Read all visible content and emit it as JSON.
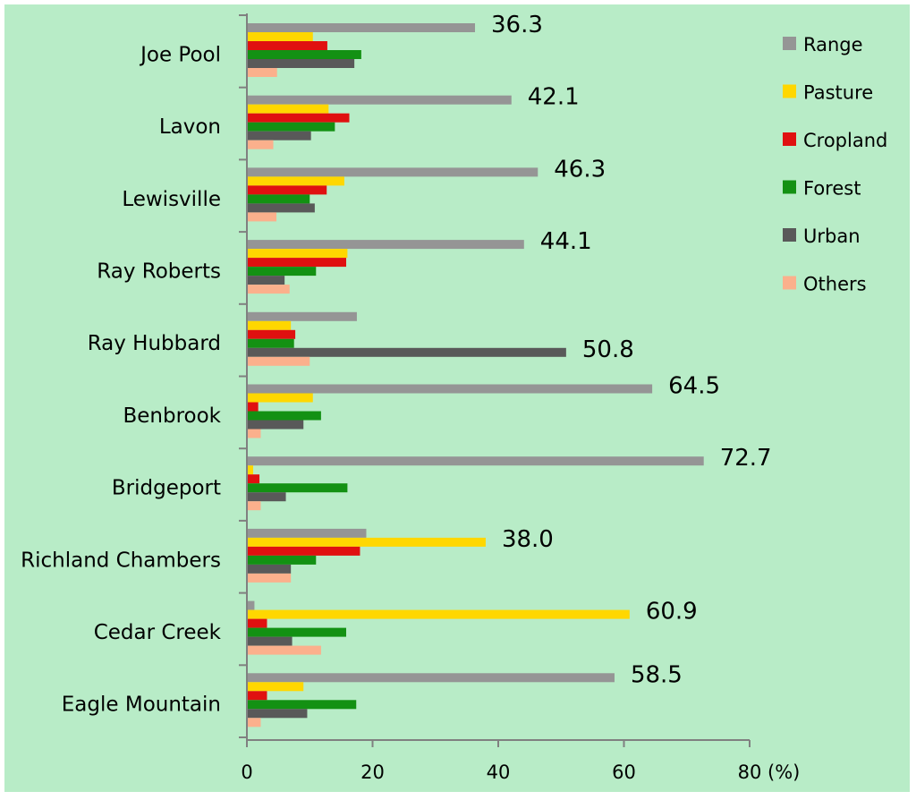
{
  "chart_data": {
    "type": "bar",
    "orientation": "horizontal",
    "categories": [
      "Joe Pool",
      "Lavon",
      "Lewisville",
      "Ray Roberts",
      "Ray Hubbard",
      "Benbrook",
      "Bridgeport",
      "Richland Chambers",
      "Cedar Creek",
      "Eagle Mountain"
    ],
    "series": [
      {
        "name": "Range",
        "color": "#959595",
        "values": [
          36.3,
          42.1,
          46.3,
          44.1,
          17.5,
          64.5,
          72.7,
          19.0,
          1.2,
          58.5
        ]
      },
      {
        "name": "Pasture",
        "color": "#ffd700",
        "values": [
          10.5,
          13.0,
          15.5,
          16.0,
          7.0,
          10.5,
          1.0,
          38.0,
          60.9,
          9.0
        ]
      },
      {
        "name": "Cropland",
        "color": "#e01010",
        "values": [
          12.8,
          16.3,
          12.7,
          15.8,
          7.7,
          1.8,
          2.0,
          18.0,
          3.2,
          3.2
        ]
      },
      {
        "name": "Forest",
        "color": "#139113",
        "values": [
          18.2,
          14.0,
          10.0,
          11.0,
          7.5,
          11.8,
          16.0,
          11.0,
          15.8,
          17.4
        ]
      },
      {
        "name": "Urban",
        "color": "#595959",
        "values": [
          17.1,
          10.2,
          10.8,
          6.0,
          50.8,
          9.0,
          6.2,
          7.0,
          7.2,
          9.6
        ]
      },
      {
        "name": "Others",
        "color": "#fbb08c",
        "values": [
          4.8,
          4.2,
          4.7,
          6.8,
          10.0,
          2.2,
          2.2,
          7.0,
          11.8,
          2.2
        ]
      }
    ],
    "annotations": [
      {
        "category": "Joe Pool",
        "series": "Range",
        "text": "36.3"
      },
      {
        "category": "Lavon",
        "series": "Range",
        "text": "42.1"
      },
      {
        "category": "Lewisville",
        "series": "Range",
        "text": "46.3"
      },
      {
        "category": "Ray Roberts",
        "series": "Range",
        "text": "44.1"
      },
      {
        "category": "Ray Hubbard",
        "series": "Urban",
        "text": "50.8"
      },
      {
        "category": "Benbrook",
        "series": "Range",
        "text": "64.5"
      },
      {
        "category": "Bridgeport",
        "series": "Range",
        "text": "72.7"
      },
      {
        "category": "Richland Chambers",
        "series": "Pasture",
        "text": "38.0"
      },
      {
        "category": "Cedar Creek",
        "series": "Pasture",
        "text": "60.9"
      },
      {
        "category": "Eagle Mountain",
        "series": "Range",
        "text": "58.5"
      }
    ],
    "xticks": [
      0,
      20,
      40,
      60,
      80
    ],
    "xlim": [
      0,
      80
    ],
    "xunit": "(%)",
    "grid": false,
    "legend_position": "right",
    "background_color": "#b8ecc7"
  }
}
